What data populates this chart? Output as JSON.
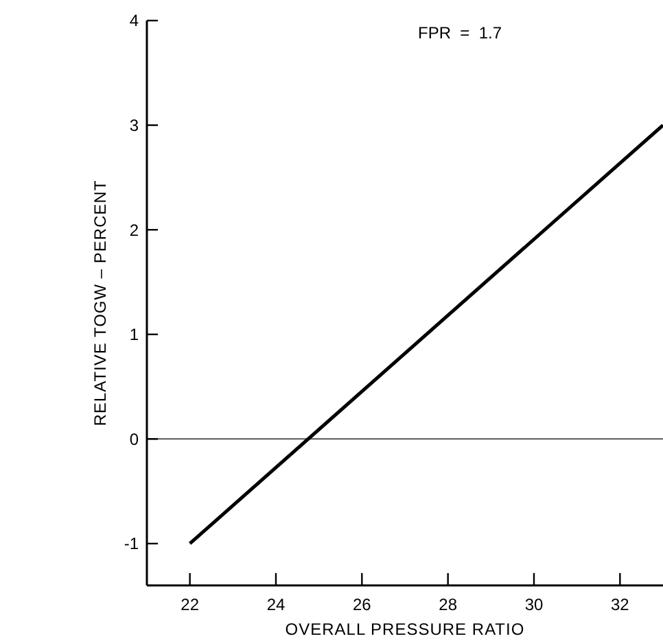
{
  "chart_data": {
    "type": "line",
    "xlabel": "OVERALL PRESSURE RATIO",
    "ylabel": "RELATIVE TOGW – PERCENT",
    "annotations": [
      "FPR  =  1.7"
    ],
    "x": [
      22,
      33
    ],
    "series": [
      {
        "color": "#000000",
        "values": [
          -1.0,
          3.0
        ]
      }
    ],
    "xlim": [
      21,
      33
    ],
    "xticks": [
      22,
      24,
      26,
      28,
      30,
      32
    ],
    "ylim": [
      -1.4,
      4
    ],
    "yticks": [
      -1,
      0,
      1,
      2,
      3,
      4
    ],
    "ref_lines": [
      {
        "axis": "y",
        "value": 0,
        "color": "#555555"
      }
    ],
    "grid": false,
    "marker": "none",
    "line_style": "solid"
  }
}
